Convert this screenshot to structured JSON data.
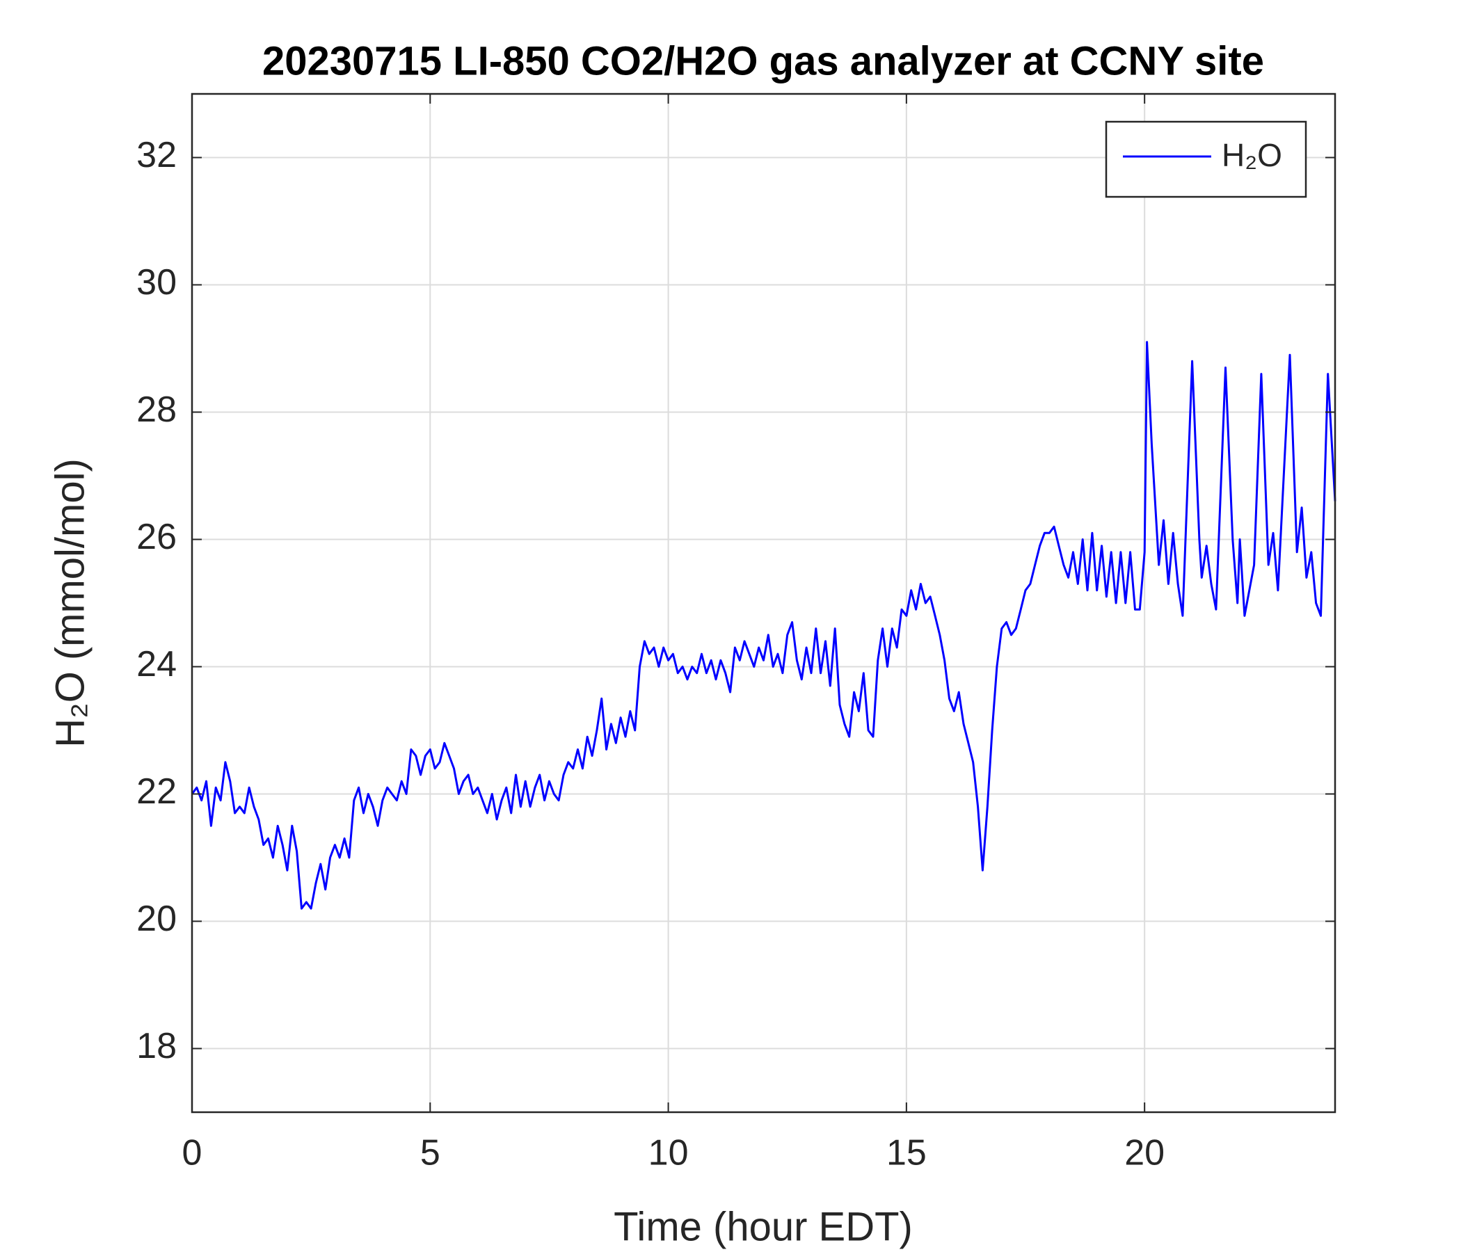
{
  "chart_data": {
    "type": "line",
    "title": "20230715 LI-850 CO2/H2O gas analyzer at CCNY site",
    "xlabel": "Time (hour EDT)",
    "ylabel": "H₂O (mmol/mol)",
    "xlim": [
      0,
      24
    ],
    "ylim": [
      17,
      33
    ],
    "xticks": [
      0,
      5,
      10,
      15,
      20
    ],
    "yticks": [
      18,
      20,
      22,
      24,
      26,
      28,
      30,
      32
    ],
    "grid": true,
    "legend": "top-right",
    "x": [
      0,
      0.1,
      0.2,
      0.3,
      0.4,
      0.5,
      0.6,
      0.7,
      0.8,
      0.9,
      1.0,
      1.1,
      1.2,
      1.3,
      1.4,
      1.5,
      1.6,
      1.7,
      1.8,
      1.9,
      2.0,
      2.1,
      2.2,
      2.3,
      2.4,
      2.5,
      2.6,
      2.7,
      2.8,
      2.9,
      3.0,
      3.1,
      3.2,
      3.3,
      3.4,
      3.5,
      3.6,
      3.7,
      3.8,
      3.9,
      4.0,
      4.1,
      4.2,
      4.3,
      4.4,
      4.5,
      4.6,
      4.7,
      4.8,
      4.9,
      5.0,
      5.1,
      5.2,
      5.3,
      5.4,
      5.5,
      5.6,
      5.7,
      5.8,
      5.9,
      6.0,
      6.1,
      6.2,
      6.3,
      6.4,
      6.5,
      6.6,
      6.7,
      6.8,
      6.9,
      7.0,
      7.1,
      7.2,
      7.3,
      7.4,
      7.5,
      7.6,
      7.7,
      7.8,
      7.9,
      8.0,
      8.1,
      8.2,
      8.3,
      8.4,
      8.5,
      8.6,
      8.7,
      8.8,
      8.9,
      9.0,
      9.1,
      9.2,
      9.3,
      9.4,
      9.5,
      9.6,
      9.7,
      9.8,
      9.9,
      10.0,
      10.1,
      10.2,
      10.3,
      10.4,
      10.5,
      10.6,
      10.7,
      10.8,
      10.9,
      11.0,
      11.1,
      11.2,
      11.3,
      11.4,
      11.5,
      11.6,
      11.7,
      11.8,
      11.9,
      12.0,
      12.1,
      12.2,
      12.3,
      12.4,
      12.5,
      12.6,
      12.7,
      12.8,
      12.9,
      13.0,
      13.1,
      13.2,
      13.3,
      13.4,
      13.5,
      13.6,
      13.7,
      13.8,
      13.9,
      14.0,
      14.1,
      14.2,
      14.3,
      14.4,
      14.5,
      14.6,
      14.7,
      14.8,
      14.9,
      15.0,
      15.1,
      15.2,
      15.3,
      15.4,
      15.5,
      15.6,
      15.7,
      15.8,
      15.9,
      16.0,
      16.1,
      16.2,
      16.3,
      16.4,
      16.5,
      16.6,
      16.7,
      16.8,
      16.9,
      17.0,
      17.1,
      17.2,
      17.3,
      17.4,
      17.5,
      17.6,
      17.7,
      17.8,
      17.9,
      18.0,
      18.1,
      18.2,
      18.3,
      18.4,
      18.5,
      18.6,
      18.7,
      18.8,
      18.9,
      19.0,
      19.1,
      19.2,
      19.3,
      19.4,
      19.5,
      19.6,
      19.7,
      19.8,
      19.9,
      20.0,
      20.05,
      20.15,
      20.3,
      20.4,
      20.5,
      20.6,
      20.7,
      20.8,
      21.0,
      21.15,
      21.2,
      21.3,
      21.4,
      21.5,
      21.7,
      21.85,
      21.95,
      22.0,
      22.1,
      22.3,
      22.45,
      22.6,
      22.7,
      22.8,
      23.05,
      23.2,
      23.3,
      23.4,
      23.5,
      23.6,
      23.7,
      23.85,
      24.0
    ],
    "series": [
      {
        "name": "H₂O",
        "color": "#0000ff",
        "values": [
          22.0,
          22.1,
          21.9,
          22.2,
          21.5,
          22.1,
          21.9,
          22.5,
          22.2,
          21.7,
          21.8,
          21.7,
          22.1,
          21.8,
          21.6,
          21.2,
          21.3,
          21.0,
          21.5,
          21.2,
          20.8,
          21.5,
          21.1,
          20.2,
          20.3,
          20.2,
          20.6,
          20.9,
          20.5,
          21.0,
          21.2,
          21.0,
          21.3,
          21.0,
          21.9,
          22.1,
          21.7,
          22.0,
          21.8,
          21.5,
          21.9,
          22.1,
          22.0,
          21.9,
          22.2,
          22.0,
          22.7,
          22.6,
          22.3,
          22.6,
          22.7,
          22.4,
          22.5,
          22.8,
          22.6,
          22.4,
          22.0,
          22.2,
          22.3,
          22.0,
          22.1,
          21.9,
          21.7,
          22.0,
          21.6,
          21.9,
          22.1,
          21.7,
          22.3,
          21.8,
          22.2,
          21.8,
          22.1,
          22.3,
          21.9,
          22.2,
          22.0,
          21.9,
          22.3,
          22.5,
          22.4,
          22.7,
          22.4,
          22.9,
          22.6,
          23.0,
          23.5,
          22.7,
          23.1,
          22.8,
          23.2,
          22.9,
          23.3,
          23.0,
          24.0,
          24.4,
          24.2,
          24.3,
          24.0,
          24.3,
          24.1,
          24.2,
          23.9,
          24.0,
          23.8,
          24.0,
          23.9,
          24.2,
          23.9,
          24.1,
          23.8,
          24.1,
          23.9,
          23.6,
          24.3,
          24.1,
          24.4,
          24.2,
          24.0,
          24.3,
          24.1,
          24.5,
          24.0,
          24.2,
          23.9,
          24.5,
          24.7,
          24.1,
          23.8,
          24.3,
          23.9,
          24.6,
          23.9,
          24.4,
          23.7,
          24.6,
          23.4,
          23.1,
          22.9,
          23.6,
          23.3,
          23.9,
          23.0,
          22.9,
          24.1,
          24.6,
          24.0,
          24.6,
          24.3,
          24.9,
          24.8,
          25.2,
          24.9,
          25.3,
          25.0,
          25.1,
          24.8,
          24.5,
          24.1,
          23.5,
          23.3,
          23.6,
          23.1,
          22.8,
          22.5,
          21.8,
          20.8,
          21.8,
          23.0,
          24.0,
          24.6,
          24.7,
          24.5,
          24.6,
          24.9,
          25.2,
          25.3,
          25.6,
          25.9,
          26.1,
          26.1,
          26.2,
          25.9,
          25.6,
          25.4,
          25.8,
          25.3,
          26.0,
          25.2,
          26.1,
          25.2,
          25.9,
          25.1,
          25.8,
          25.0,
          25.8,
          25.0,
          25.8,
          24.9,
          24.9,
          25.8,
          29.1,
          27.5,
          25.6,
          26.3,
          25.3,
          26.1,
          25.3,
          24.8,
          28.8,
          26.0,
          25.4,
          25.9,
          25.3,
          24.9,
          28.7,
          26.0,
          25.0,
          26.0,
          24.8,
          25.6,
          28.6,
          25.6,
          26.1,
          25.2,
          28.9,
          25.8,
          26.5,
          25.4,
          25.8,
          25.0,
          24.8,
          28.6,
          26.6
        ]
      }
    ]
  }
}
